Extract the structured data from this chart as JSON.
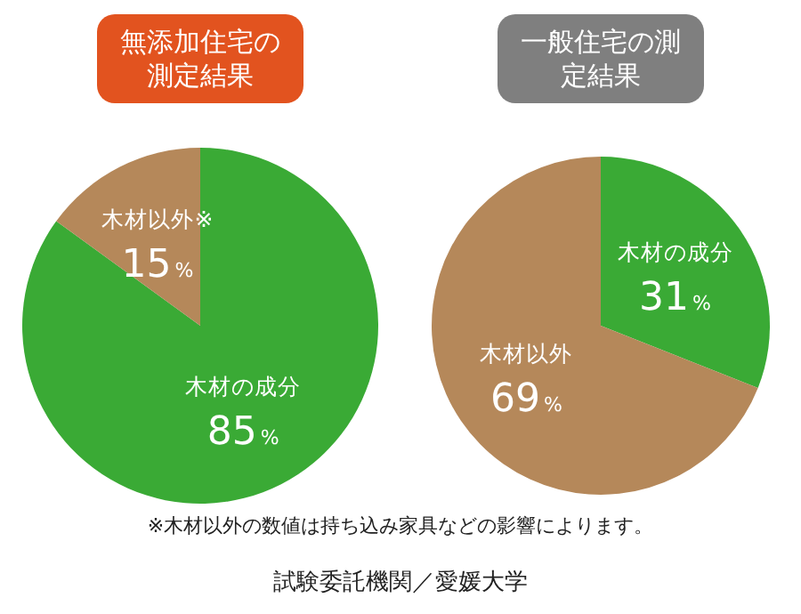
{
  "chart_data": [
    {
      "type": "pie",
      "title": "無添加住宅の測定結果",
      "categories": [
        "木材の成分",
        "木材以外※"
      ],
      "values": [
        85,
        15
      ],
      "value_labels": [
        "85%",
        "15%"
      ],
      "colors": [
        "#3aaa35",
        "#b5885a"
      ]
    },
    {
      "type": "pie",
      "title": "一般住宅の測定結果",
      "categories": [
        "木材の成分",
        "木材以外"
      ],
      "values": [
        31,
        69
      ],
      "value_labels": [
        "31%",
        "69%"
      ],
      "colors": [
        "#3aaa35",
        "#b5885a"
      ],
      "annotations": [
        "※木材以外の数値は持ち込み家具などの影響によります。",
        "試験委託機関／愛媛大学"
      ]
    }
  ]
}
